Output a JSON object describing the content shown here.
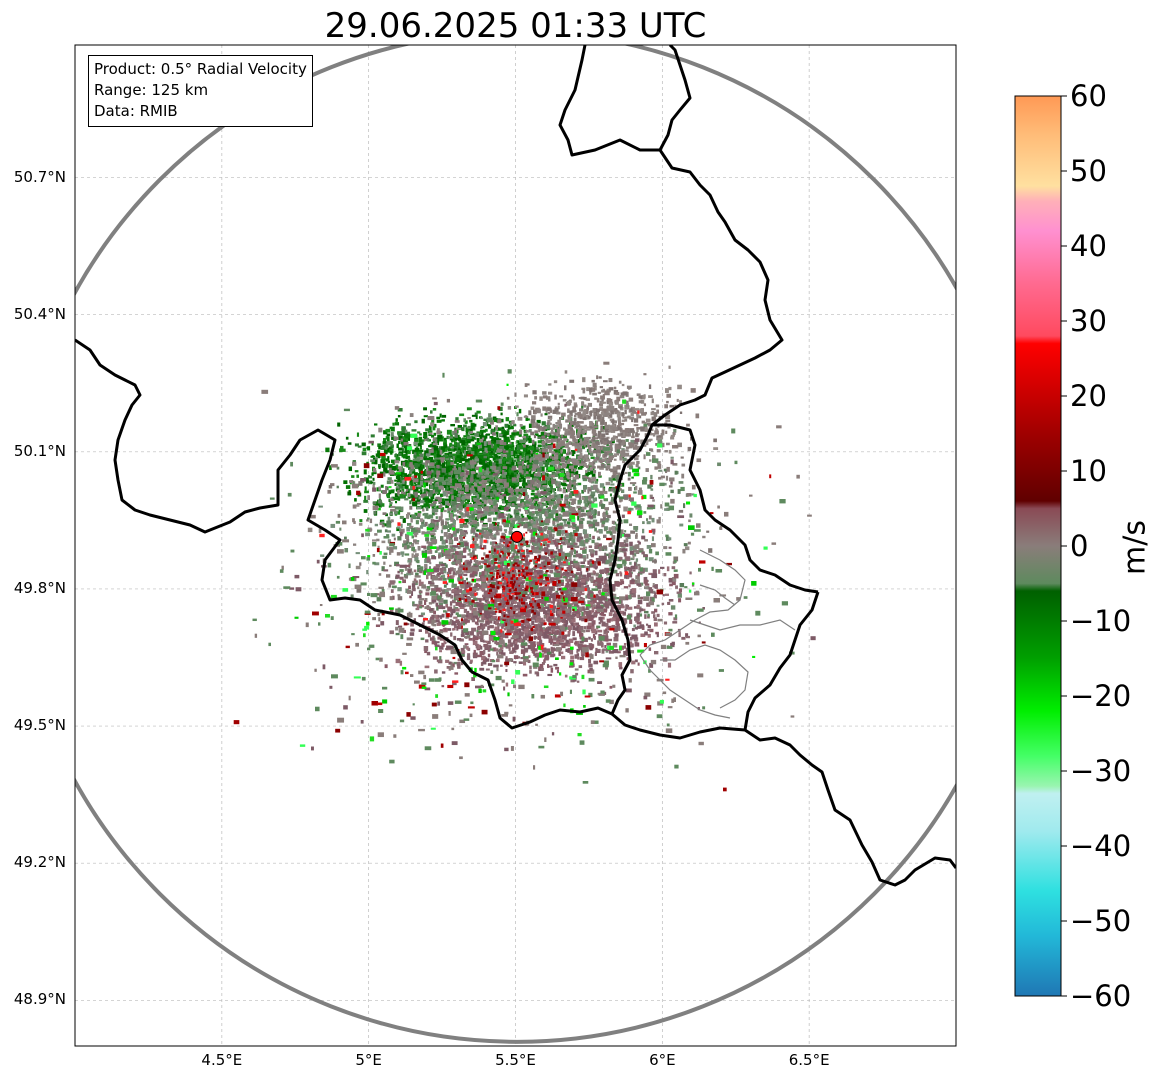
{
  "title": "29.06.2025 01:33 UTC",
  "info_box": {
    "product": "Product: 0.5° Radial Velocity",
    "range": "Range: 125 km",
    "data": "Data: RMIB"
  },
  "map": {
    "lon_range": [
      4.0,
      7.0
    ],
    "lat_range": [
      48.8,
      50.99
    ],
    "radar_site": {
      "lon": 5.505,
      "lat": 49.914
    },
    "range_ring_km": 125,
    "lat_ticks": [
      {
        "value": 48.9,
        "label": "48.9°N"
      },
      {
        "value": 49.2,
        "label": "49.2°N"
      },
      {
        "value": 49.5,
        "label": "49.5°N"
      },
      {
        "value": 49.8,
        "label": "49.8°N"
      },
      {
        "value": 50.1,
        "label": "50.1°N"
      },
      {
        "value": 50.4,
        "label": "50.4°N"
      },
      {
        "value": 50.7,
        "label": "50.7°N"
      }
    ],
    "lon_ticks": [
      {
        "value": 4.5,
        "label": "4.5°E"
      },
      {
        "value": 5.0,
        "label": "5°E"
      },
      {
        "value": 5.5,
        "label": "5.5°E"
      },
      {
        "value": 6.0,
        "label": "6°E"
      },
      {
        "value": 6.5,
        "label": "6.5°E"
      }
    ],
    "grid": true,
    "colors": {
      "ring": "#808080",
      "border": "#000000",
      "admin_border": "#808080",
      "radar_marker": "#ff0000"
    }
  },
  "colorbar": {
    "unit": "m/s",
    "vmin": -60,
    "vmax": 60,
    "ticks": [
      {
        "value": 60,
        "label": "60"
      },
      {
        "value": 50,
        "label": "50"
      },
      {
        "value": 40,
        "label": "40"
      },
      {
        "value": 30,
        "label": "30"
      },
      {
        "value": 20,
        "label": "20"
      },
      {
        "value": 10,
        "label": "10"
      },
      {
        "value": 0,
        "label": "0"
      },
      {
        "value": -10,
        "label": "−10"
      },
      {
        "value": -20,
        "label": "−20"
      },
      {
        "value": -30,
        "label": "−30"
      },
      {
        "value": -40,
        "label": "−40"
      },
      {
        "value": -50,
        "label": "−50"
      },
      {
        "value": -60,
        "label": "−60"
      }
    ],
    "stops": [
      {
        "value": -60,
        "color": "#1f77b4"
      },
      {
        "value": -52,
        "color": "#22b8d8"
      },
      {
        "value": -46,
        "color": "#2ee0e0"
      },
      {
        "value": -38,
        "color": "#a0eaee"
      },
      {
        "value": -33,
        "color": "#c0f0f0"
      },
      {
        "value": -32,
        "color": "#99f5b0"
      },
      {
        "value": -28,
        "color": "#44ff66"
      },
      {
        "value": -22,
        "color": "#00ee00"
      },
      {
        "value": -15,
        "color": "#00a000"
      },
      {
        "value": -6,
        "color": "#006000"
      },
      {
        "value": -5,
        "color": "#5e8a5e"
      },
      {
        "value": 0,
        "color": "#8a7d7a"
      },
      {
        "value": 5,
        "color": "#8a4a55"
      },
      {
        "value": 6,
        "color": "#600000"
      },
      {
        "value": 15,
        "color": "#a00000"
      },
      {
        "value": 27,
        "color": "#ff0000"
      },
      {
        "value": 28,
        "color": "#ff4a5f"
      },
      {
        "value": 35,
        "color": "#ff6a90"
      },
      {
        "value": 42,
        "color": "#ff90d0"
      },
      {
        "value": 46,
        "color": "#ffb0b8"
      },
      {
        "value": 48,
        "color": "#ffe0a0"
      },
      {
        "value": 55,
        "color": "#ffbb77"
      },
      {
        "value": 60,
        "color": "#ff9955"
      }
    ]
  }
}
